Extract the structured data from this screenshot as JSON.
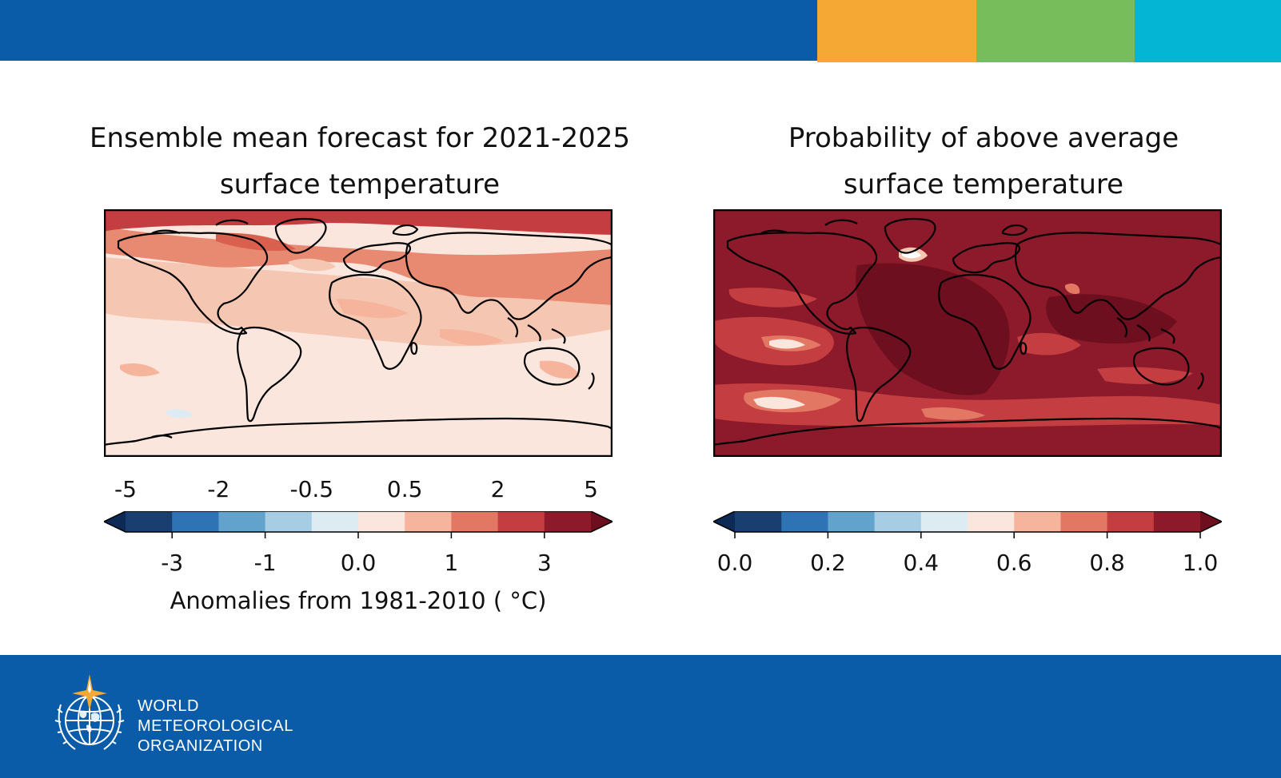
{
  "colors": {
    "brand_blue": "#0a5ca8",
    "accent_orange": "#f5a833",
    "accent_green": "#77bd5b",
    "accent_cyan": "#05b6d4"
  },
  "left_panel": {
    "title_line1": "Ensemble mean forecast for 2021-2025",
    "title_line2": "surface temperature",
    "colorbar": {
      "top_ticks": [
        "-5",
        "-2",
        "-0.5",
        "0.5",
        "2",
        "5"
      ],
      "bottom_ticks": [
        "-3",
        "-1",
        "0.0",
        "1",
        "3"
      ],
      "bins": [
        "#193f70",
        "#2e73b3",
        "#62a3ce",
        "#a6cde3",
        "#ddebf2",
        "#fae6dd",
        "#f5b49b",
        "#e27763",
        "#c43d41",
        "#8d1a2a"
      ],
      "extend_low": "#0c2a55",
      "extend_high": "#6e0f20",
      "caption": "Anomalies from 1981-2010 ( °C)"
    }
  },
  "right_panel": {
    "title_line1": "Probability of above average",
    "title_line2": "surface temperature",
    "colorbar": {
      "ticks": [
        "0.0",
        "0.2",
        "0.4",
        "0.6",
        "0.8",
        "1.0"
      ],
      "bins": [
        "#193f70",
        "#2e73b3",
        "#62a3ce",
        "#a6cde3",
        "#ddebf2",
        "#fae6dd",
        "#f5b49b",
        "#e27763",
        "#c43d41",
        "#8d1a2a"
      ],
      "extend_low": "#0c2a55",
      "extend_high": "#6e0f20"
    }
  },
  "footer": {
    "org_line1": "WORLD",
    "org_line2": "METEOROLOGICAL",
    "org_line3": "ORGANIZATION"
  }
}
